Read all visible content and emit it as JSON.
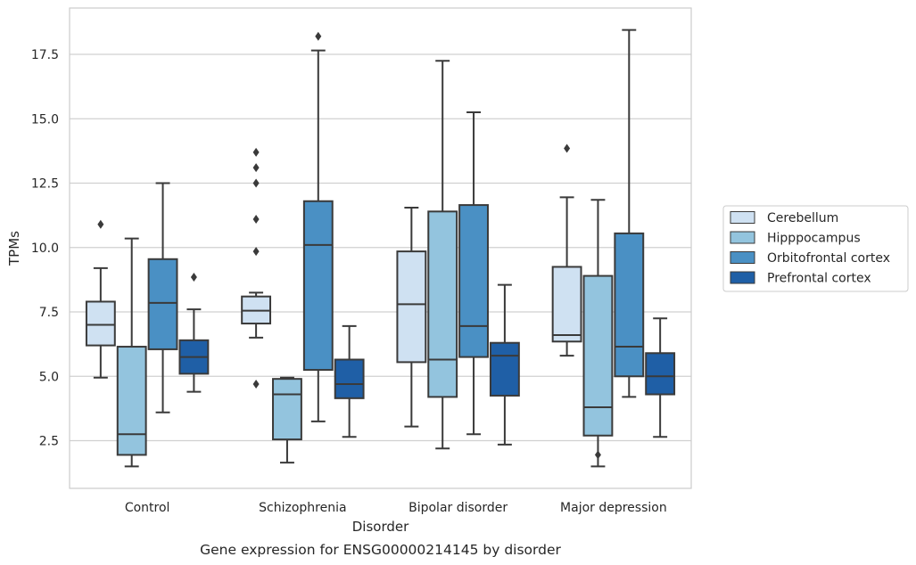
{
  "chart_data": {
    "type": "box",
    "title": "",
    "caption": "Gene expression for ENSG00000214145 by disorder",
    "xlabel": "Disorder",
    "ylabel": "TPMs",
    "ylim": [
      0.65,
      19.3
    ],
    "yticks": [
      2.5,
      5.0,
      7.5,
      10.0,
      12.5,
      15.0,
      17.5
    ],
    "ytick_labels": [
      "2.5",
      "5.0",
      "7.5",
      "10.0",
      "12.5",
      "15.0",
      "17.5"
    ],
    "grid": "horizontal",
    "legend_position": "right",
    "categories": [
      "Control",
      "Schizophrenia",
      "Bipolar disorder",
      "Major depression"
    ],
    "series": [
      {
        "name": "Cerebellum",
        "color": "#cfe1f2",
        "boxes": [
          {
            "whislo": 4.95,
            "q1": 6.2,
            "med": 7.0,
            "q3": 7.9,
            "whishi": 9.2,
            "fliers": [
              10.9
            ]
          },
          {
            "whislo": 6.5,
            "q1": 7.05,
            "med": 7.55,
            "q3": 8.1,
            "whishi": 8.25,
            "fliers": [
              13.1,
              13.7,
              12.5,
              11.1,
              9.85,
              4.7
            ]
          },
          {
            "whislo": 3.05,
            "q1": 5.55,
            "med": 7.8,
            "q3": 9.85,
            "whishi": 11.55,
            "fliers": []
          },
          {
            "whislo": 5.8,
            "q1": 6.35,
            "med": 6.6,
            "q3": 9.25,
            "whishi": 11.95,
            "fliers": [
              13.85
            ]
          }
        ]
      },
      {
        "name": "Hipppocampus",
        "color": "#93c4de",
        "boxes": [
          {
            "whislo": 1.5,
            "q1": 1.95,
            "med": 2.75,
            "q3": 6.15,
            "whishi": 10.35,
            "fliers": []
          },
          {
            "whislo": 1.65,
            "q1": 2.55,
            "med": 4.3,
            "q3": 4.9,
            "whishi": 4.95,
            "fliers": []
          },
          {
            "whislo": 2.2,
            "q1": 4.2,
            "med": 5.65,
            "q3": 11.4,
            "whishi": 17.25,
            "fliers": []
          },
          {
            "whislo": 1.5,
            "q1": 2.7,
            "med": 3.8,
            "q3": 8.9,
            "whishi": 11.85,
            "fliers": [
              1.95
            ]
          }
        ]
      },
      {
        "name": "Orbitofrontal cortex",
        "color": "#4a90c4",
        "boxes": [
          {
            "whislo": 3.6,
            "q1": 6.05,
            "med": 7.85,
            "q3": 9.55,
            "whishi": 12.5,
            "fliers": []
          },
          {
            "whislo": 3.25,
            "q1": 5.25,
            "med": 10.1,
            "q3": 11.8,
            "whishi": 17.65,
            "fliers": [
              18.2
            ]
          },
          {
            "whislo": 2.75,
            "q1": 5.75,
            "med": 6.95,
            "q3": 11.65,
            "whishi": 15.25,
            "fliers": []
          },
          {
            "whislo": 4.2,
            "q1": 5.0,
            "med": 6.15,
            "q3": 10.55,
            "whishi": 18.45,
            "fliers": []
          }
        ]
      },
      {
        "name": "Prefrontal cortex",
        "color": "#1f5fa6",
        "boxes": [
          {
            "whislo": 4.4,
            "q1": 5.1,
            "med": 5.75,
            "q3": 6.4,
            "whishi": 7.6,
            "fliers": [
              8.85
            ]
          },
          {
            "whislo": 2.65,
            "q1": 4.15,
            "med": 4.7,
            "q3": 5.65,
            "whishi": 6.95,
            "fliers": []
          },
          {
            "whislo": 2.35,
            "q1": 4.25,
            "med": 5.8,
            "q3": 6.3,
            "whishi": 8.55,
            "fliers": []
          },
          {
            "whislo": 2.65,
            "q1": 4.3,
            "med": 5.0,
            "q3": 5.9,
            "whishi": 7.25,
            "fliers": []
          }
        ]
      }
    ]
  }
}
